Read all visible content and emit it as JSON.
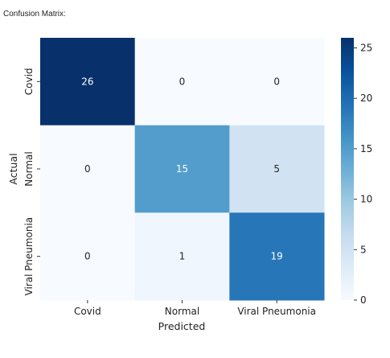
{
  "caption": "Confusion Matrix:",
  "chart_data": {
    "type": "heatmap",
    "title": "",
    "xlabel": "Predicted",
    "ylabel": "Actual",
    "x_categories": [
      "Covid",
      "Normal",
      "Viral Pneumonia"
    ],
    "y_categories": [
      "Covid",
      "Normal",
      "Viral Pneumonia"
    ],
    "values": [
      [
        26,
        0,
        0
      ],
      [
        0,
        15,
        5
      ],
      [
        0,
        1,
        19
      ]
    ],
    "colormap": "Blues",
    "vmin": 0,
    "vmax": 26,
    "colorbar_ticks": [
      0,
      5,
      10,
      15,
      20,
      25
    ],
    "colorbar_low": "#f7fbff",
    "colorbar_high": "#08306b"
  }
}
